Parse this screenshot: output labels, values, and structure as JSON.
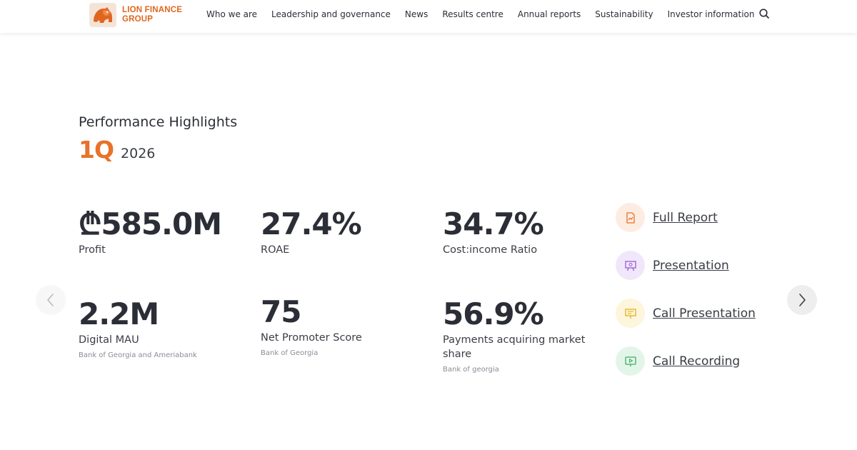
{
  "header": {
    "logo_text_line1": "LION FINANCE",
    "logo_text_line2": "GROUP",
    "nav": [
      {
        "label": "Who we are"
      },
      {
        "label": "Leadership and governance"
      },
      {
        "label": "News"
      },
      {
        "label": "Results centre"
      },
      {
        "label": "Annual reports"
      },
      {
        "label": "Sustainability"
      },
      {
        "label": "Investor information"
      }
    ],
    "search_icon": "search-icon"
  },
  "highlights": {
    "title": "Performance Highlights",
    "quarter": "1Q",
    "year": "2026",
    "metrics": [
      {
        "value": "₾585.0M",
        "label": "Profit",
        "note": ""
      },
      {
        "value": "27.4%",
        "label": "ROAE",
        "note": ""
      },
      {
        "value": "34.7%",
        "label": "Cost:income Ratio",
        "note": ""
      },
      {
        "value": "2.2M",
        "label": "Digital MAU",
        "note": "Bank of Georgia and Ameriabank"
      },
      {
        "value": "75",
        "label": "Net Promoter Score",
        "note": "Bank of Georgia"
      },
      {
        "value": "56.9%",
        "label": "Payments acquiring market share",
        "note": "Bank of georgia"
      }
    ]
  },
  "links": [
    {
      "label": "Full Report",
      "icon": "report-chart-icon",
      "color": "#e8722a",
      "bg": "#fdece2"
    },
    {
      "label": "Presentation",
      "icon": "presentation-board-icon",
      "color": "#9b5bd6",
      "bg": "#f1e7fa"
    },
    {
      "label": "Call Presentation",
      "icon": "call-presentation-icon",
      "color": "#e3b21c",
      "bg": "#fdf5dc"
    },
    {
      "label": "Call Recording",
      "icon": "call-recording-icon",
      "color": "#3fae63",
      "bg": "#e3f5e9"
    }
  ],
  "carousel": {
    "prev_icon": "chevron-left-icon",
    "next_icon": "chevron-right-icon"
  }
}
